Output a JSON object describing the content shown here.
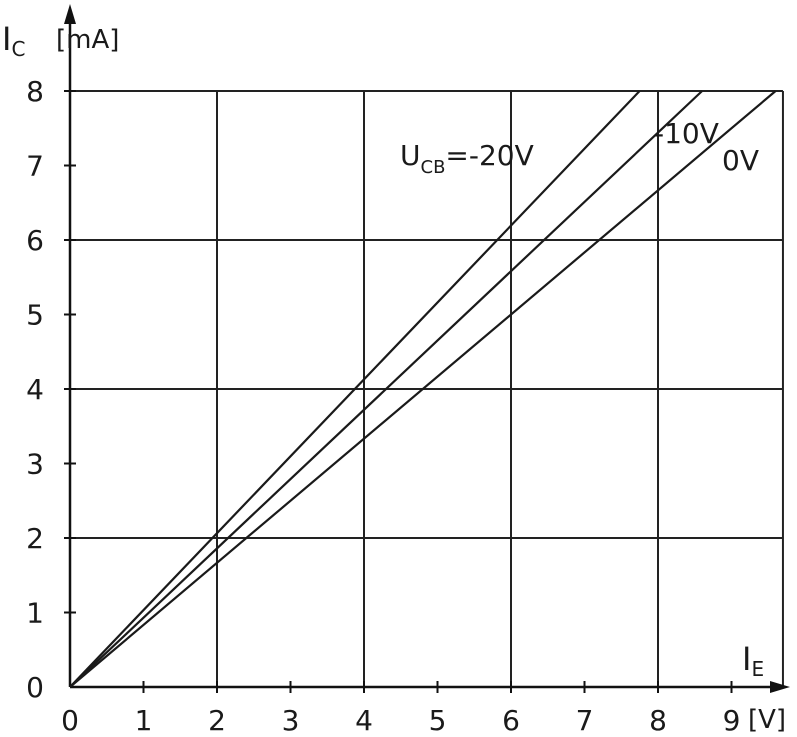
{
  "chart_data": {
    "type": "line",
    "y_title": {
      "main": "I",
      "sub": "C"
    },
    "y_unit": "[mA]",
    "x_title": {
      "main": "I",
      "sub": "E"
    },
    "x_unit": "[V]",
    "xlim": [
      0,
      9.7
    ],
    "ylim": [
      0,
      8
    ],
    "x_ticks": [
      "0",
      "1",
      "2",
      "3",
      "4",
      "5",
      "6",
      "7",
      "8",
      "9"
    ],
    "y_ticks": [
      "0",
      "1",
      "2",
      "3",
      "4",
      "5",
      "6",
      "7",
      "8"
    ],
    "x_grid": [
      2,
      4,
      6,
      8
    ],
    "y_grid": [
      2,
      4,
      6,
      8
    ],
    "grid": true,
    "series": [
      {
        "name": "U_CB=-20V",
        "label_main": "U",
        "label_sub": "CB",
        "label_rest": "=-20V",
        "x": [
          0,
          7.75
        ],
        "y": [
          0,
          8
        ]
      },
      {
        "name": "-10V",
        "label_main": "-10V",
        "label_sub": "",
        "label_rest": "",
        "x": [
          0,
          8.6
        ],
        "y": [
          0,
          8
        ]
      },
      {
        "name": "0V",
        "label_main": "0V",
        "label_sub": "",
        "label_rest": "",
        "x": [
          0,
          9.6
        ],
        "y": [
          0,
          8
        ]
      }
    ]
  }
}
